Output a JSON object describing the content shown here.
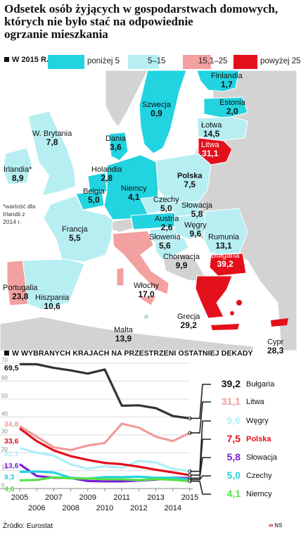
{
  "title_lines": [
    "Odsetek osób żyjących w gospodarstwach domowych,",
    "których nie było stać na odpowiednie",
    "ogrzanie mieszkania"
  ],
  "map_subtitle": "W 2015 R.",
  "legend": [
    {
      "label": "poniżej 5",
      "color": "#22d3e0"
    },
    {
      "label": "5–15",
      "color": "#b7eef2"
    },
    {
      "label": "15,1–25",
      "color": "#f2a0a0"
    },
    {
      "label": "powyżej 25",
      "color": "#e3101c"
    }
  ],
  "map_countries": [
    {
      "name": "Finlandia",
      "value": "1,7",
      "key": "fi"
    },
    {
      "name": "Szwecja",
      "value": "0,9",
      "key": "se"
    },
    {
      "name": "Estonia",
      "value": "2,0",
      "key": "ee"
    },
    {
      "name": "Łotwa",
      "value": "14,5",
      "key": "lv"
    },
    {
      "name": "Litwa",
      "value": "31,1",
      "key": "lt"
    },
    {
      "name": "W. Brytania",
      "value": "7,8",
      "key": "uk"
    },
    {
      "name": "Dania",
      "value": "3,6",
      "key": "dk"
    },
    {
      "name": "Irlandia*",
      "value": "8,9",
      "key": "ie"
    },
    {
      "name": "Holandia",
      "value": "2,8",
      "key": "nl"
    },
    {
      "name": "Polska",
      "value": "7,5",
      "key": "pl"
    },
    {
      "name": "Belgia",
      "value": "5,0",
      "key": "be"
    },
    {
      "name": "Niemcy",
      "value": "4,1",
      "key": "de"
    },
    {
      "name": "Czechy",
      "value": "5,0",
      "key": "cz"
    },
    {
      "name": "Słowacja",
      "value": "5,8",
      "key": "sk"
    },
    {
      "name": "Francja",
      "value": "5,5",
      "key": "fr"
    },
    {
      "name": "Austria",
      "value": "2,6",
      "key": "at"
    },
    {
      "name": "Węgry",
      "value": "9,6",
      "key": "hu"
    },
    {
      "name": "Słowenia",
      "value": "5,6",
      "key": "si"
    },
    {
      "name": "Rumunia",
      "value": "13,1",
      "key": "ro"
    },
    {
      "name": "Chorwacja",
      "value": "9,9",
      "key": "hr"
    },
    {
      "name": "Bułgaria",
      "value": "39,2",
      "key": "bg"
    },
    {
      "name": "Portugalia",
      "value": "23,8",
      "key": "pt"
    },
    {
      "name": "Hiszpania",
      "value": "10,6",
      "key": "es"
    },
    {
      "name": "Włochy",
      "value": "17,0",
      "key": "it"
    },
    {
      "name": "Grecja",
      "value": "29,2",
      "key": "gr"
    },
    {
      "name": "Malta",
      "value": "13,9",
      "key": "mt"
    },
    {
      "name": "Cypr",
      "value": "28,3",
      "key": "cy"
    }
  ],
  "map_note": "*wartość dla Irlandii z 2014 r.",
  "chart_subtitle": "W WYBRANYCH KRAJACH NA PRZESTRZENI OSTATNIEJ DEKADY",
  "chart_data": {
    "type": "line",
    "x": [
      2005,
      2006,
      2007,
      2008,
      2009,
      2010,
      2011,
      2012,
      2013,
      2014,
      2015
    ],
    "xlim": [
      2005,
      2015
    ],
    "ylim": [
      0,
      70
    ],
    "yticks": [
      0,
      10,
      20,
      30,
      40,
      50,
      60,
      70
    ],
    "xticks_top": [
      2005,
      2007,
      2009,
      2011,
      2013,
      2015
    ],
    "xticks_bottom": [
      2006,
      2008,
      2010,
      2012,
      2014
    ],
    "grid": true,
    "start_labels": [
      {
        "text": "69,5",
        "series": "Bułgaria"
      },
      {
        "text": "34,8",
        "series": "Litwa"
      },
      {
        "text": "33,6",
        "series": "Polska"
      },
      {
        "text": "22,7",
        "series": "Węgry"
      },
      {
        "text": "13,6",
        "series": "Słowacja"
      },
      {
        "text": "9,3",
        "series": "Czechy"
      },
      {
        "text": "4,6",
        "series": "Niemcy"
      }
    ],
    "series": [
      {
        "name": "Bułgaria",
        "end_label": "39,2",
        "color": "#333333",
        "values": [
          69.5,
          69.4,
          67.4,
          66.0,
          64.2,
          66.5,
          46.3,
          46.5,
          44.9,
          40.5,
          39.2
        ]
      },
      {
        "name": "Litwa",
        "end_label": "31,1",
        "color": "#f29a9a",
        "values": [
          34.8,
          29.0,
          23.0,
          21.5,
          24.0,
          25.5,
          36.2,
          34.0,
          29.0,
          26.5,
          31.1
        ]
      },
      {
        "name": "Węgry",
        "end_label": "9,6",
        "color": "#b0f0f8",
        "values": [
          22.7,
          20.0,
          18.4,
          13.5,
          11.0,
          12.5,
          11.6,
          15.5,
          14.5,
          11.0,
          9.6
        ]
      },
      {
        "name": "Polska",
        "end_label": "7,5",
        "color": "#e3101c",
        "values": [
          33.6,
          26.5,
          21.3,
          18.1,
          16.0,
          14.3,
          13.6,
          12.2,
          10.5,
          9.0,
          7.5
        ]
      },
      {
        "name": "Słowacja",
        "end_label": "5,8",
        "color": "#7a1fd1",
        "values": [
          13.6,
          7.0,
          6.0,
          5.9,
          4.2,
          4.0,
          4.0,
          4.5,
          5.0,
          6.1,
          5.8
        ]
      },
      {
        "name": "Czechy",
        "end_label": "5,0",
        "color": "#22d3e0",
        "values": [
          9.3,
          9.5,
          9.0,
          6.0,
          5.6,
          6.4,
          6.4,
          6.6,
          6.0,
          6.1,
          5.0
        ]
      },
      {
        "name": "Niemcy",
        "end_label": "4,1",
        "color": "#58e048",
        "values": [
          4.6,
          4.8,
          6.3,
          5.7,
          5.6,
          5.2,
          5.2,
          4.7,
          5.3,
          4.9,
          4.1
        ]
      }
    ]
  },
  "source": "Źródło: Eurostat",
  "logo": {
    "mark": "∞",
    "text": "NS"
  }
}
